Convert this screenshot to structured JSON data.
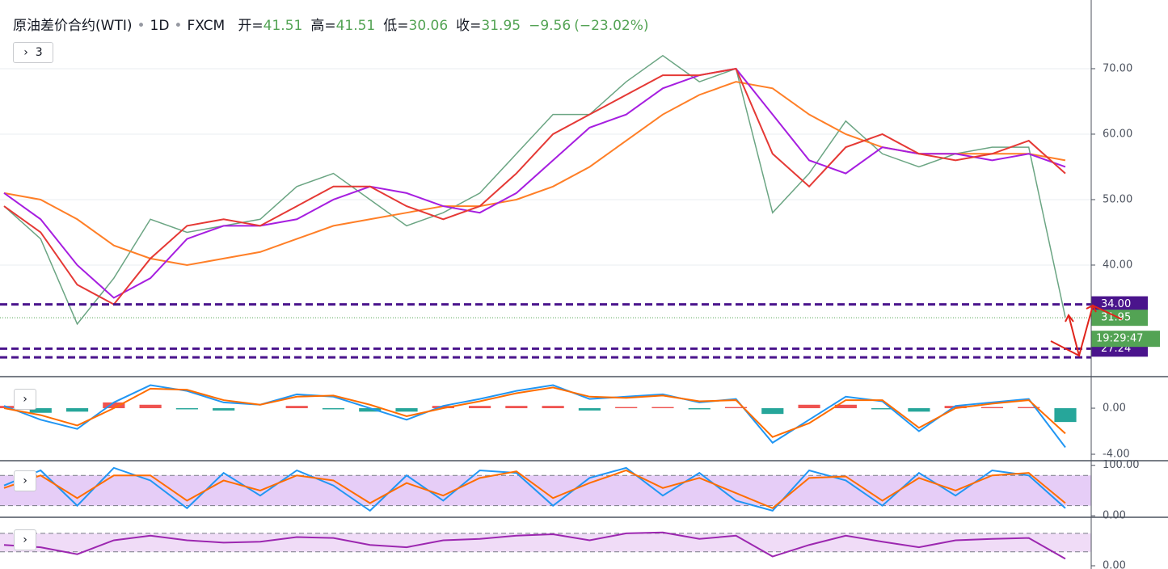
{
  "header": {
    "symbol": "原油差价合约(WTI)",
    "interval": "1D",
    "source": "FXCM",
    "open_label": "开=",
    "open": 41.51,
    "high_label": "高=",
    "high": 41.51,
    "low_label": "低=",
    "low": 30.06,
    "close_label": "收=",
    "close": 31.95,
    "change": {
      "value": -9.56,
      "label": "−9.56"
    },
    "change_pct": {
      "value": -23.02,
      "label": "(−23.02%)"
    },
    "indicators_count": 3
  },
  "chart_data": [
    {
      "type": "line",
      "categories": [
        null,
        null,
        null,
        null,
        null,
        null,
        null,
        null,
        null,
        null,
        null,
        null,
        null,
        null,
        null,
        null,
        null,
        null,
        null,
        null,
        null,
        null,
        null,
        null,
        null,
        null,
        null,
        null,
        null,
        null
      ],
      "ylim": [
        22.96,
        80.49
      ],
      "yticks": [
        {
          "value": 40,
          "label": "40.00"
        },
        {
          "value": 50,
          "label": "50.00"
        },
        {
          "value": 60,
          "label": "60.00"
        },
        {
          "value": 70,
          "label": "70.00"
        }
      ],
      "grid": true,
      "series": [
        {
          "color": "#6ba583",
          "values": [
            49,
            44,
            31,
            38,
            47,
            45,
            46,
            47,
            52,
            54,
            50,
            46,
            48,
            51,
            57,
            63,
            63,
            68,
            72,
            68,
            70,
            48,
            54,
            62,
            57,
            55,
            57,
            58,
            58,
            32
          ]
        },
        {
          "color": "#ff7f27",
          "values": [
            51,
            50,
            47,
            43,
            41,
            40,
            41,
            42,
            44,
            46,
            47,
            48,
            49,
            49,
            50,
            52,
            55,
            59,
            63,
            66,
            68,
            67,
            63,
            60,
            58,
            57,
            57,
            57,
            57,
            56
          ]
        },
        {
          "color": "#a61ee0",
          "values": [
            51,
            47,
            40,
            35,
            38,
            44,
            46,
            46,
            47,
            50,
            52,
            51,
            49,
            48,
            51,
            56,
            61,
            63,
            67,
            69,
            70,
            63,
            56,
            54,
            58,
            57,
            57,
            56,
            57,
            55
          ]
        },
        {
          "color": "#e53935",
          "values": [
            49,
            45,
            37,
            34,
            41,
            46,
            47,
            46,
            49,
            52,
            52,
            49,
            47,
            49,
            54,
            60,
            63,
            66,
            69,
            69,
            70,
            57,
            52,
            58,
            60,
            57,
            56,
            57,
            59,
            54
          ]
        }
      ],
      "levels": [
        {
          "value": 34,
          "label": "34.00"
        },
        {
          "value": 27.24,
          "label": "27.24"
        },
        25.9
      ],
      "level_color": "#4a148c",
      "last_price": {
        "value": 31.95,
        "label": "31.95"
      },
      "last_price_color": "#53a354",
      "countdown": "19:29:47"
    },
    {
      "type": "line",
      "categories": [
        null,
        null,
        null,
        null,
        null,
        null,
        null,
        null,
        null,
        null,
        null,
        null,
        null,
        null,
        null,
        null,
        null,
        null,
        null,
        null,
        null,
        null,
        null,
        null,
        null,
        null,
        null,
        null,
        null,
        null
      ],
      "ylim": [
        -4.56,
        2.6
      ],
      "yticks": [
        {
          "value": -4,
          "label": "-4.00"
        },
        {
          "value": 0,
          "label": "0.00"
        }
      ],
      "series": [
        {
          "type": "bar",
          "color": "#ef5350",
          "color_negative": "#26a69a",
          "values": [
            0.2,
            -0.4,
            -0.3,
            0.5,
            0.3,
            -0.1,
            -0.2,
            0,
            0.2,
            -0.1,
            -0.3,
            -0.3,
            0.2,
            0.2,
            0.2,
            0.2,
            -0.2,
            0.1,
            0.1,
            -0.1,
            0.1,
            -0.5,
            0.3,
            0.3,
            -0.1,
            -0.3,
            0.2,
            0.1,
            0.1,
            -1.2
          ]
        },
        {
          "color": "#2196f3",
          "values": [
            0.2,
            -1,
            -1.8,
            0.5,
            2,
            1.5,
            0.5,
            0.3,
            1.2,
            1,
            0,
            -1,
            0.2,
            0.8,
            1.5,
            2,
            0.8,
            1,
            1.2,
            0.5,
            0.8,
            -3,
            -1,
            1,
            0.6,
            -2,
            0.2,
            0.5,
            0.8,
            -3.4
          ]
        },
        {
          "color": "#ff6d00",
          "values": [
            0,
            -0.6,
            -1.5,
            0,
            1.7,
            1.6,
            0.7,
            0.3,
            1,
            1.1,
            0.3,
            -0.7,
            0,
            0.6,
            1.3,
            1.8,
            1,
            0.9,
            1.1,
            0.6,
            0.7,
            -2.5,
            -1.3,
            0.7,
            0.7,
            -1.7,
            0,
            0.4,
            0.7,
            -2.2
          ]
        }
      ]
    },
    {
      "type": "line",
      "categories": [
        null,
        null,
        null,
        null,
        null,
        null,
        null,
        null,
        null,
        null,
        null,
        null,
        null,
        null,
        null,
        null,
        null,
        null,
        null,
        null,
        null,
        null,
        null,
        null,
        null,
        null,
        null,
        null,
        null,
        null
      ],
      "ylim": [
        -3,
        106
      ],
      "yticks": [
        {
          "value": 0,
          "label": "0.00"
        },
        {
          "value": 100,
          "label": "100.00"
        }
      ],
      "band": [
        20,
        80
      ],
      "band_color": "#e6cdf7",
      "series": [
        {
          "color": "#2196f3",
          "values": [
            60,
            90,
            20,
            95,
            70,
            15,
            85,
            40,
            90,
            60,
            10,
            80,
            30,
            90,
            85,
            20,
            75,
            95,
            40,
            85,
            30,
            10,
            90,
            70,
            20,
            85,
            40,
            90,
            80,
            15
          ]
        },
        {
          "color": "#ff6d00",
          "values": [
            55,
            80,
            35,
            80,
            80,
            30,
            70,
            50,
            80,
            70,
            25,
            65,
            40,
            75,
            88,
            35,
            65,
            90,
            55,
            75,
            45,
            15,
            75,
            78,
            30,
            75,
            50,
            80,
            85,
            25
          ]
        }
      ]
    },
    {
      "type": "line",
      "categories": [
        null,
        null,
        null,
        null,
        null,
        null,
        null,
        null,
        null,
        null,
        null,
        null,
        null,
        null,
        null,
        null,
        null,
        null,
        null,
        null,
        null,
        null,
        null,
        null,
        null,
        null,
        null,
        null,
        null,
        null
      ],
      "ylim": [
        -7,
        103
      ],
      "yticks": [
        {
          "value": 0,
          "label": "0.00"
        }
      ],
      "band": [
        30,
        70
      ],
      "band_color": "#f0dcf7",
      "series": [
        {
          "color": "#9c27b0",
          "values": [
            45,
            40,
            25,
            55,
            65,
            55,
            50,
            52,
            62,
            60,
            45,
            40,
            55,
            58,
            65,
            68,
            55,
            70,
            72,
            58,
            65,
            20,
            45,
            65,
            52,
            40,
            55,
            58,
            60,
            15
          ]
        }
      ]
    }
  ]
}
